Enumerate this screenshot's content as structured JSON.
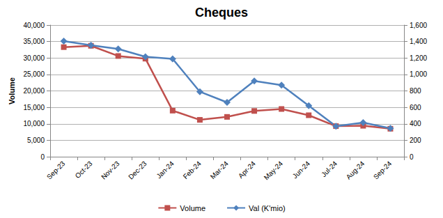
{
  "chart_data": {
    "type": "line",
    "title": "Cheques",
    "ylabel": "Volume",
    "categories": [
      "Sep-23",
      "Oct-23",
      "Nov-23",
      "Dec-23",
      "Jan-24",
      "Feb-24",
      "Mar-24",
      "Apr-24",
      "May-24",
      "Jun-24",
      "Jul-24",
      "Aug-24",
      "Sep-24"
    ],
    "series": [
      {
        "name": "Volume",
        "color": "#c0504d",
        "marker": "square",
        "values": [
          33300,
          33700,
          30600,
          29800,
          14000,
          11200,
          12100,
          13900,
          14500,
          12600,
          9300,
          9400,
          8500
        ]
      },
      {
        "name": "Val (K'mio)",
        "color": "#4f81bd",
        "marker": "diamond",
        "axis": "y2",
        "values": [
          1405,
          1355,
          1310,
          1215,
          1190,
          790,
          660,
          920,
          870,
          620,
          370,
          415,
          345
        ]
      }
    ],
    "ylim": [
      0,
      40000
    ],
    "yticks": [
      0,
      {
        "value": 5000,
        "label": "5,000"
      },
      {
        "value": 10000,
        "label": "10,000"
      },
      {
        "value": 15000,
        "label": "15,000"
      },
      {
        "value": 20000,
        "label": "20,000"
      },
      {
        "value": 25000,
        "label": "25,000"
      },
      {
        "value": 30000,
        "label": "30,000"
      },
      {
        "value": 35000,
        "label": "35,000"
      },
      {
        "value": 40000,
        "label": "40,000"
      }
    ],
    "y2lim": [
      0,
      1600
    ],
    "y2ticks": [
      0,
      200,
      400,
      600,
      800,
      {
        "value": 1000,
        "label": "1,000"
      },
      {
        "value": 1200,
        "label": "1,200"
      },
      {
        "value": 1400,
        "label": "1,400"
      },
      {
        "value": 1600,
        "label": "1,600"
      }
    ],
    "grid": true,
    "legend": "bottom"
  }
}
